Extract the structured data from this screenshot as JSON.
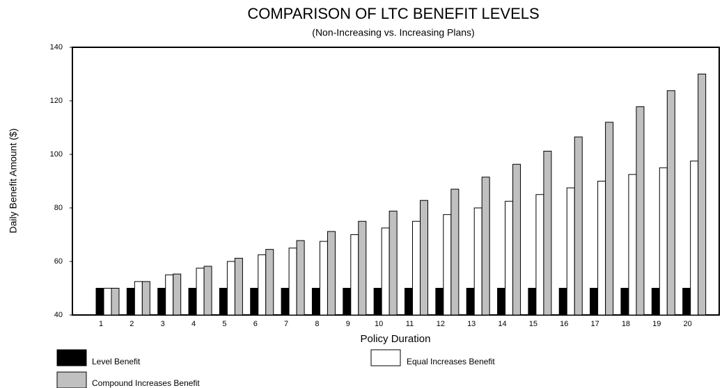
{
  "chart_data": {
    "type": "bar",
    "title": "COMPARISON OF LTC BENEFIT LEVELS",
    "subtitle": "(Non-Increasing vs. Increasing Plans)",
    "x_label": "Policy Duration",
    "y_label": "Daily Benefit Amount ($)",
    "categories": [
      "1",
      "2",
      "3",
      "4",
      "5",
      "6",
      "7",
      "8",
      "9",
      "10",
      "11",
      "12",
      "13",
      "14",
      "15",
      "16",
      "17",
      "18",
      "19",
      "20"
    ],
    "series": [
      {
        "name": "Level Benefit",
        "color": "#000000",
        "values": [
          50,
          50,
          50,
          50,
          50,
          50,
          50,
          50,
          50,
          50,
          50,
          50,
          50,
          50,
          50,
          50,
          50,
          50,
          50,
          50
        ]
      },
      {
        "name": "Equal Increases Benefit",
        "color": "#ffffff",
        "values": [
          50,
          52.5,
          55,
          57.5,
          60,
          62.5,
          65,
          67.5,
          70,
          72.5,
          75,
          77.5,
          80,
          82.5,
          85,
          87.5,
          90,
          92.5,
          95,
          97.5
        ]
      },
      {
        "name": "Compound Increases Benefit",
        "color": "#c0c0c0",
        "values": [
          50,
          52.5,
          55.3,
          58.2,
          61.2,
          64.5,
          67.8,
          71.2,
          75,
          78.8,
          82.8,
          87,
          91.5,
          96.3,
          101.2,
          106.5,
          112,
          117.8,
          123.8,
          130
        ]
      }
    ],
    "ylim": [
      40,
      140
    ],
    "yticks": [
      40,
      60,
      80,
      100,
      120,
      140
    ],
    "grid": false
  }
}
